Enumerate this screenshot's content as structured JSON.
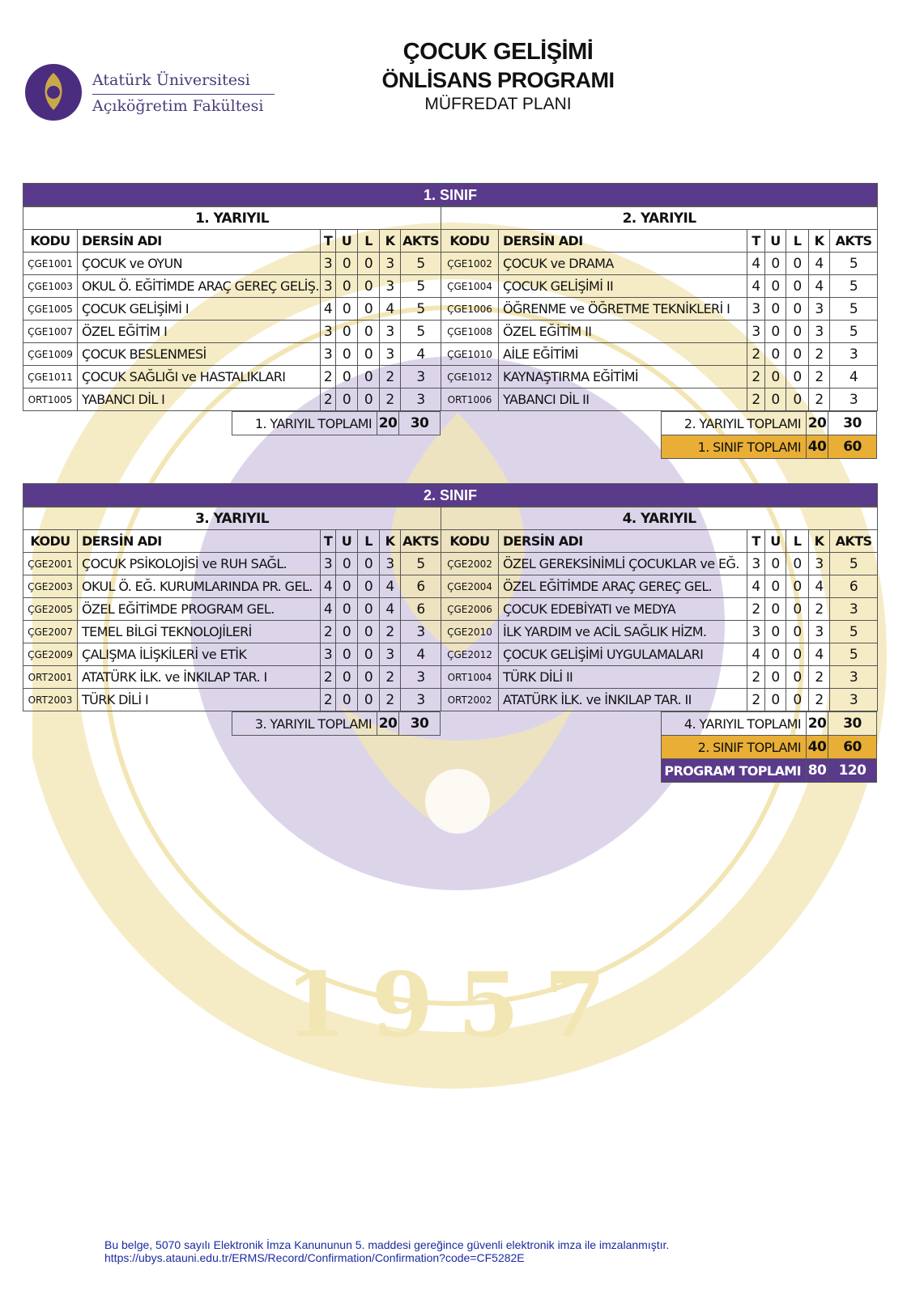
{
  "header": {
    "university": "Atatürk Üniversitesi",
    "faculty": "Açıköğretim Fakültesi",
    "title1": "ÇOCUK GELİŞİMİ",
    "title2": "ÖNLİSANS PROGRAMI",
    "title3": "MÜFREDAT PLANI"
  },
  "colors": {
    "purple": "#5a3a8a",
    "gold": "#e9ae36",
    "watermark_gold": "#f3e6b5",
    "watermark_purple": "#d6cfe6"
  },
  "watermark": {
    "year": "1957"
  },
  "columns": [
    "KODU",
    "DERSİN ADI",
    "T",
    "U",
    "L",
    "K",
    "AKTS"
  ],
  "sinifs": [
    {
      "title": "1. SINIF",
      "semesters": [
        {
          "title": "1. YARIYIL",
          "courses": [
            [
              "ÇGE1001",
              "ÇOCUK ve OYUN",
              "3",
              "0",
              "0",
              "3",
              "5"
            ],
            [
              "ÇGE1003",
              "OKUL Ö. EĞİTİMDE ARAÇ GEREÇ GELİŞ.",
              "3",
              "0",
              "0",
              "3",
              "5"
            ],
            [
              "ÇGE1005",
              "ÇOCUK GELİŞİMİ I",
              "4",
              "0",
              "0",
              "4",
              "5"
            ],
            [
              "ÇGE1007",
              "ÖZEL EĞİTİM I",
              "3",
              "0",
              "0",
              "3",
              "5"
            ],
            [
              "ÇGE1009",
              "ÇOCUK BESLENMESİ",
              "3",
              "0",
              "0",
              "3",
              "4"
            ],
            [
              "ÇGE1011",
              "ÇOCUK SAĞLIĞI ve HASTALIKLARI",
              "2",
              "0",
              "0",
              "2",
              "3"
            ],
            [
              "ORT1005",
              "YABANCI DİL I",
              "2",
              "0",
              "0",
              "2",
              "3"
            ]
          ],
          "totals": [
            {
              "label": "1.  YARIYIL TOPLAMI",
              "k": "20",
              "akts": "30",
              "style": "plain"
            }
          ]
        },
        {
          "title": "2. YARIYIL",
          "courses": [
            [
              "ÇGE1002",
              "ÇOCUK ve DRAMA",
              "4",
              "0",
              "0",
              "4",
              "5"
            ],
            [
              "ÇGE1004",
              "ÇOCUK GELİŞİMİ II",
              "4",
              "0",
              "0",
              "4",
              "5"
            ],
            [
              "ÇGE1006",
              "ÖĞRENME ve ÖĞRETME TEKNİKLERİ I",
              "3",
              "0",
              "0",
              "3",
              "5"
            ],
            [
              "ÇGE1008",
              "ÖZEL EĞİTİM II",
              "3",
              "0",
              "0",
              "3",
              "5"
            ],
            [
              "ÇGE1010",
              "AİLE EĞİTİMİ",
              "2",
              "0",
              "0",
              "2",
              "3"
            ],
            [
              "ÇGE1012",
              "KAYNAŞTIRMA EĞİTİMİ",
              "2",
              "0",
              "0",
              "2",
              "4"
            ],
            [
              "ORT1006",
              "YABANCI DİL II",
              "2",
              "0",
              "0",
              "2",
              "3"
            ]
          ],
          "totals": [
            {
              "label": "2. YARIYIL TOPLAMI",
              "k": "20",
              "akts": "30",
              "style": "plain"
            },
            {
              "label": "1. SINIF TOPLAMI",
              "k": "40",
              "akts": "60",
              "style": "gold"
            }
          ]
        }
      ]
    },
    {
      "title": "2. SINIF",
      "semesters": [
        {
          "title": "3. YARIYIL",
          "courses": [
            [
              "ÇGE2001",
              "ÇOCUK PSİKOLOJİSİ ve RUH SAĞL.",
              "3",
              "0",
              "0",
              "3",
              "5"
            ],
            [
              "ÇGE2003",
              "OKUL Ö. EĞ. KURUMLARINDA PR. GEL.",
              "4",
              "0",
              "0",
              "4",
              "6"
            ],
            [
              "ÇGE2005",
              "ÖZEL EĞİTİMDE PROGRAM GEL.",
              "4",
              "0",
              "0",
              "4",
              "6"
            ],
            [
              "ÇGE2007",
              "TEMEL BİLGİ TEKNOLOJİLERİ",
              "2",
              "0",
              "0",
              "2",
              "3"
            ],
            [
              "ÇGE2009",
              "ÇALIŞMA İLİŞKİLERİ ve ETİK",
              "3",
              "0",
              "0",
              "3",
              "4"
            ],
            [
              "ORT2001",
              "ATATÜRK İLK. ve İNKILAP TAR. I",
              "2",
              "0",
              "0",
              "2",
              "3"
            ],
            [
              "ORT2003",
              "TÜRK DİLİ I",
              "2",
              "0",
              "0",
              "2",
              "3"
            ]
          ],
          "totals": [
            {
              "label": "3.  YARIYIL TOPLAMI",
              "k": "20",
              "akts": "30",
              "style": "plain"
            }
          ]
        },
        {
          "title": "4. YARIYIL",
          "courses": [
            [
              "ÇGE2002",
              "ÖZEL GEREKSİNİMLİ ÇOCUKLAR ve EĞ.",
              "3",
              "0",
              "0",
              "3",
              "5"
            ],
            [
              "ÇGE2004",
              "ÖZEL EĞİTİMDE ARAÇ GEREÇ GEL.",
              "4",
              "0",
              "0",
              "4",
              "6"
            ],
            [
              "ÇGE2006",
              "ÇOCUK EDEBİYATI ve MEDYA",
              "2",
              "0",
              "0",
              "2",
              "3"
            ],
            [
              "ÇGE2010",
              "İLK YARDIM ve ACİL SAĞLIK HİZM.",
              "3",
              "0",
              "0",
              "3",
              "5"
            ],
            [
              "ÇGE2012",
              "ÇOCUK GELİŞİMİ UYGULAMALARI",
              "4",
              "0",
              "0",
              "4",
              "5"
            ],
            [
              "ORT1004",
              "TÜRK DİLİ II",
              "2",
              "0",
              "0",
              "2",
              "3"
            ],
            [
              "ORT2002",
              "ATATÜRK İLK. ve İNKILAP TAR. II",
              "2",
              "0",
              "0",
              "2",
              "3"
            ]
          ],
          "totals": [
            {
              "label": "4. YARIYIL TOPLAMI",
              "k": "20",
              "akts": "30",
              "style": "plain"
            },
            {
              "label": "2. SINIF TOPLAMI",
              "k": "40",
              "akts": "60",
              "style": "gold"
            },
            {
              "label": "PROGRAM TOPLAMI",
              "k": "80",
              "akts": "120",
              "style": "purple"
            }
          ]
        }
      ]
    }
  ],
  "footer": {
    "line1": "Bu belge, 5070 sayılı Elektronik İmza Kanununun 5. maddesi gereğince güvenli elektronik imza ile imzalanmıştır.",
    "line2": "https://ubys.atauni.edu.tr/ERMS/Record/Confirmation/Confirmation?code=CF5282E"
  }
}
